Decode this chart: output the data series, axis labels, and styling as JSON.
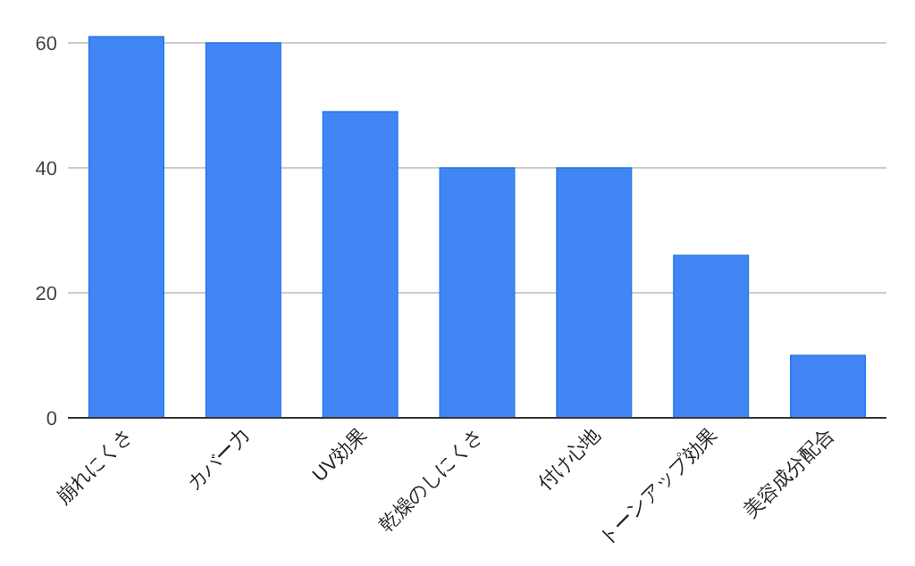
{
  "chart_data": {
    "type": "bar",
    "categories": [
      "崩れにくさ",
      "カバー力",
      "UV効果",
      "乾燥のしにくさ",
      "付け心地",
      "トーンアップ効果",
      "美容成分配合"
    ],
    "values": [
      61,
      60,
      49,
      40,
      40,
      26,
      10
    ],
    "color": "#4285f4",
    "ylim": [
      0,
      61
    ],
    "yticks": [
      0,
      20,
      40,
      60
    ],
    "grid": "y"
  }
}
